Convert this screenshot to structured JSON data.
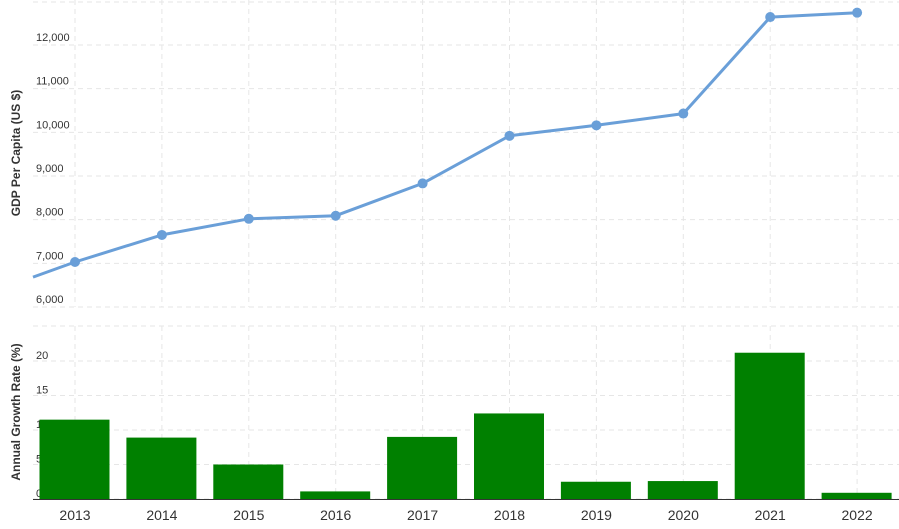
{
  "chart_data": [
    {
      "type": "line",
      "ylabel": "GDP Per Capita (US $)",
      "ylim": [
        6000,
        12800
      ],
      "yticks": [
        "6,000",
        "7,000",
        "8,000",
        "9,000",
        "10,000",
        "11,000",
        "12,000"
      ],
      "grid": true,
      "x": [
        2013,
        2014,
        2015,
        2016,
        2017,
        2018,
        2019,
        2020,
        2021,
        2022
      ],
      "series": [
        {
          "values": [
            7030,
            7650,
            8020,
            8090,
            8830,
            9920,
            10160,
            10430,
            12640,
            12740
          ]
        }
      ],
      "line_color": "#6a9fd8"
    },
    {
      "type": "bar",
      "ylabel": "Annual Growth Rate (%)",
      "ylim": [
        0,
        25
      ],
      "yticks": [
        "0",
        "5",
        "10",
        "15",
        "20"
      ],
      "grid": true,
      "categories": [
        "2013",
        "2014",
        "2015",
        "2016",
        "2017",
        "2018",
        "2019",
        "2020",
        "2021",
        "2022"
      ],
      "series": [
        {
          "values": [
            11.5,
            8.9,
            5.0,
            1.1,
            9.0,
            12.4,
            2.5,
            2.6,
            21.2,
            0.9
          ]
        }
      ],
      "bar_color": "#008000"
    }
  ]
}
